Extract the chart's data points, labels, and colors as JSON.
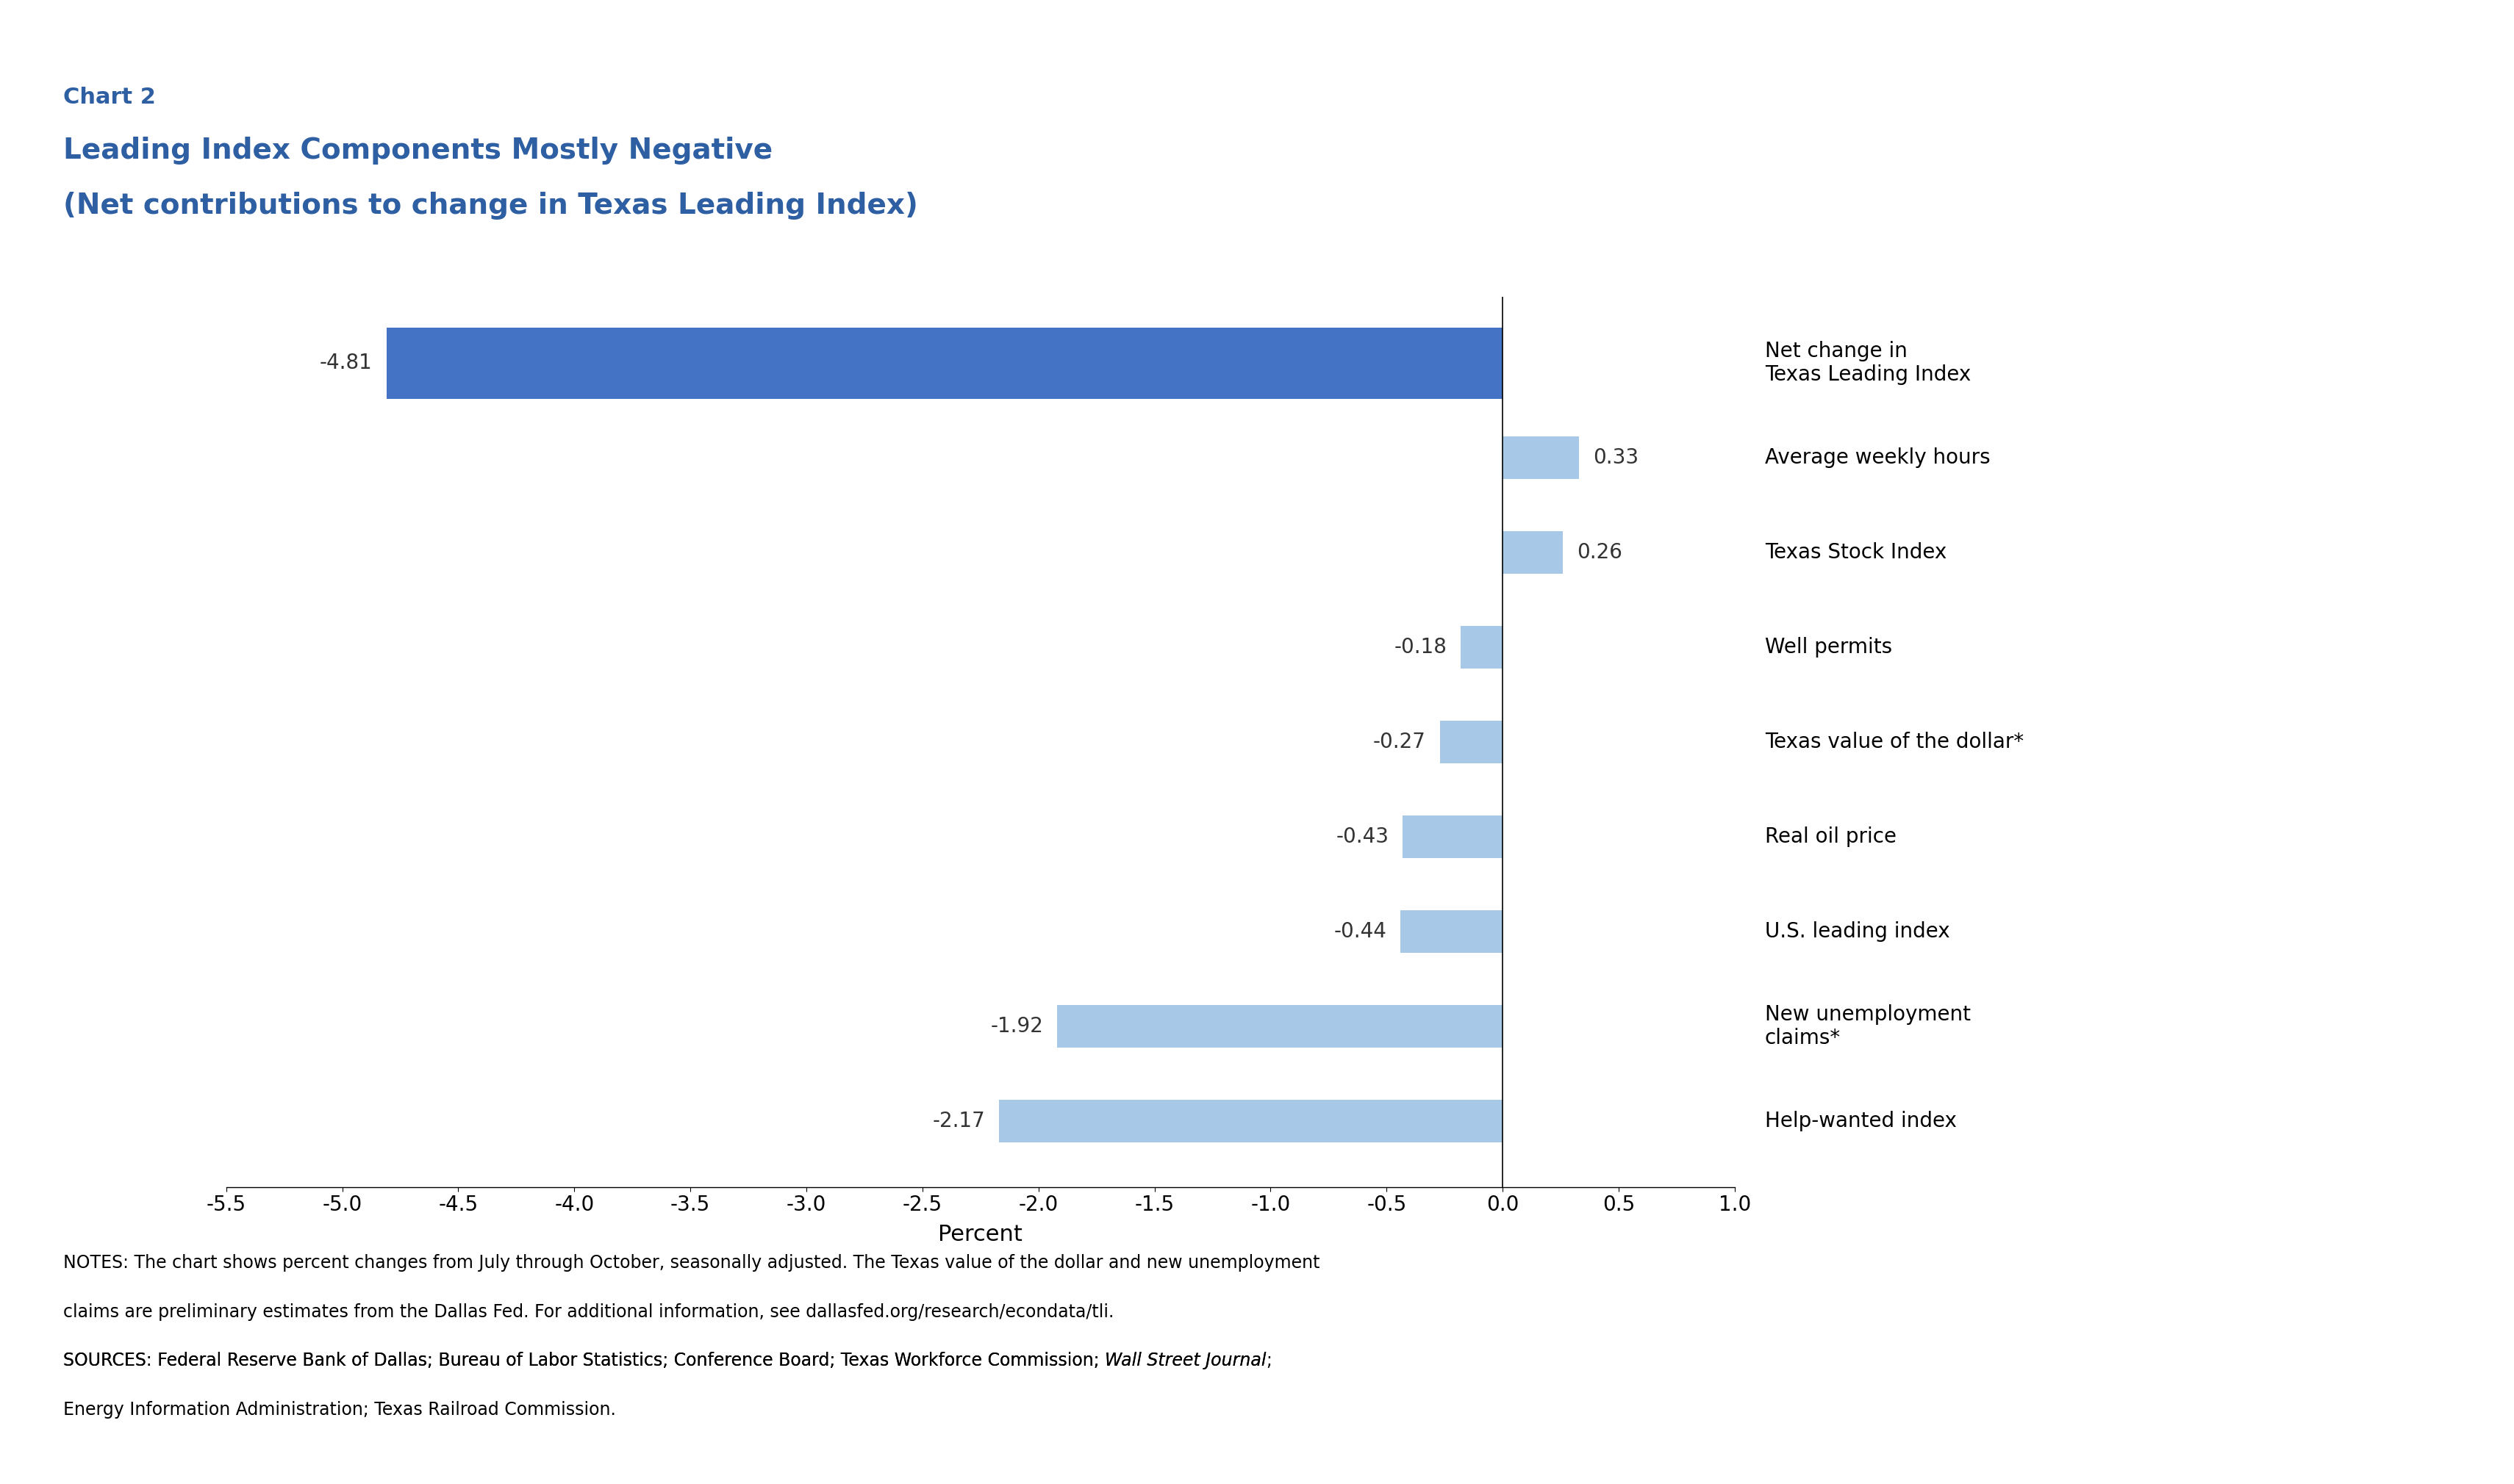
{
  "chart_label": "Chart 2",
  "title_line1": "Leading Index Components Mostly Negative",
  "title_line2": "(Net contributions to change in Texas Leading Index)",
  "categories": [
    "Net change in\nTexas Leading Index",
    "Average weekly hours",
    "Texas Stock Index",
    "Well permits",
    "Texas value of the dollar*",
    "Real oil price",
    "U.S. leading index",
    "New unemployment\nclaims*",
    "Help-wanted index"
  ],
  "values": [
    -4.81,
    0.33,
    0.26,
    -0.18,
    -0.27,
    -0.43,
    -0.44,
    -1.92,
    -2.17
  ],
  "bar_colors": [
    "#4472c4",
    "#a8c8e8",
    "#a8c8e8",
    "#a8c8e8",
    "#a8c8e8",
    "#a8c8e8",
    "#a8c8e8",
    "#a8c8e8",
    "#a8c8e8"
  ],
  "value_labels": [
    "-4.81",
    "0.33",
    "0.26",
    "-0.18",
    "-0.27",
    "-0.43",
    "-0.44",
    "-1.92",
    "-2.17"
  ],
  "bar_heights": [
    0.75,
    0.45,
    0.45,
    0.45,
    0.45,
    0.45,
    0.45,
    0.45,
    0.45
  ],
  "xlim": [
    -5.5,
    1.0
  ],
  "xticks": [
    -5.5,
    -5.0,
    -4.5,
    -4.0,
    -3.5,
    -3.0,
    -2.5,
    -2.0,
    -1.5,
    -1.0,
    -0.5,
    0.0,
    0.5,
    1.0
  ],
  "xlabel": "Percent",
  "background_color": "#ffffff",
  "title_color": "#2e5fa3",
  "axis_color": "#000000",
  "right_labels": [
    "Net change in\nTexas Leading Index",
    "Average weekly hours",
    "Texas Stock Index",
    "Well permits",
    "Texas value of the dollar*",
    "Real oil price",
    "U.S. leading index",
    "New unemployment\nclaims*",
    "Help-wanted index"
  ]
}
